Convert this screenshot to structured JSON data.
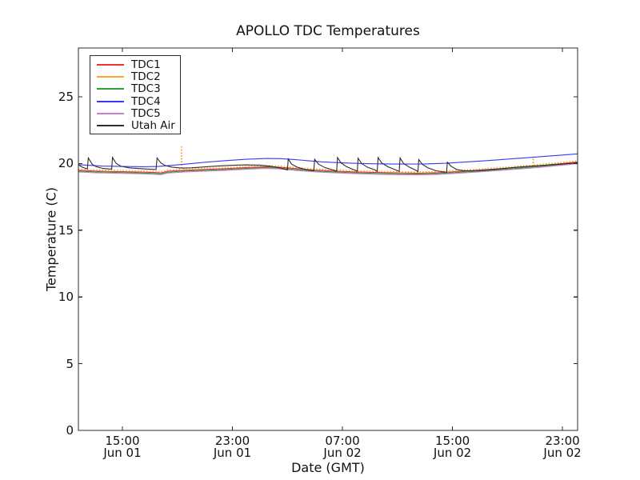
{
  "chart_data": {
    "type": "line",
    "title": "APOLLO TDC Temperatures",
    "xlabel": "Date (GMT)",
    "ylabel": "Temperature (C)",
    "grid": false,
    "legend_position": "upper left",
    "x_unit": "hours since Jun 01 00:00 GMT",
    "xlim": [
      11.8,
      48.1
    ],
    "ylim": [
      0,
      28.66
    ],
    "yticks": [
      0,
      5,
      10,
      15,
      20,
      25
    ],
    "xticks": [
      {
        "t": 15,
        "time": "15:00",
        "date": "Jun 01"
      },
      {
        "t": 23,
        "time": "23:00",
        "date": "Jun 01"
      },
      {
        "t": 31,
        "time": "07:00",
        "date": "Jun 02"
      },
      {
        "t": 39,
        "time": "15:00",
        "date": "Jun 02"
      },
      {
        "t": 47,
        "time": "23:00",
        "date": "Jun 02"
      }
    ],
    "series": [
      {
        "name": "TDC1",
        "color": "#ee3333",
        "style": "solid",
        "points": [
          [
            11.8,
            19.5
          ],
          [
            13,
            19.44
          ],
          [
            14.5,
            19.4
          ],
          [
            16,
            19.37
          ],
          [
            17.3,
            19.33
          ],
          [
            17.8,
            19.3
          ],
          [
            18.3,
            19.42
          ],
          [
            19.5,
            19.5
          ],
          [
            21,
            19.56
          ],
          [
            22.5,
            19.62
          ],
          [
            24,
            19.7
          ],
          [
            25.3,
            19.76
          ],
          [
            26.3,
            19.74
          ],
          [
            27.5,
            19.63
          ],
          [
            29,
            19.51
          ],
          [
            30.5,
            19.43
          ],
          [
            32,
            19.37
          ],
          [
            33.5,
            19.33
          ],
          [
            35,
            19.3
          ],
          [
            36.5,
            19.28
          ],
          [
            38,
            19.32
          ],
          [
            39.5,
            19.41
          ],
          [
            41,
            19.51
          ],
          [
            42.5,
            19.62
          ],
          [
            44,
            19.73
          ],
          [
            45.5,
            19.86
          ],
          [
            47,
            20.01
          ],
          [
            48.1,
            20.12
          ]
        ]
      },
      {
        "name": "TDC2",
        "color": "#ffa728",
        "style": "dotted",
        "points": [
          [
            11.8,
            19.59
          ],
          [
            13,
            19.53
          ],
          [
            14.5,
            19.49
          ],
          [
            16,
            19.46
          ],
          [
            17.3,
            19.42
          ],
          [
            17.8,
            19.39
          ],
          [
            18.3,
            19.51
          ],
          [
            19.2,
            19.58
          ],
          [
            19.28,
            19.6
          ],
          [
            19.3,
            21.35
          ],
          [
            19.34,
            19.6
          ],
          [
            21,
            19.65
          ],
          [
            22.5,
            19.71
          ],
          [
            24,
            19.79
          ],
          [
            25.3,
            19.85
          ],
          [
            26.3,
            19.83
          ],
          [
            27.5,
            19.72
          ],
          [
            29,
            19.6
          ],
          [
            30.5,
            19.52
          ],
          [
            32,
            19.46
          ],
          [
            33.5,
            19.42
          ],
          [
            35,
            19.39
          ],
          [
            36.5,
            19.37
          ],
          [
            38,
            19.41
          ],
          [
            39.5,
            19.5
          ],
          [
            41,
            19.6
          ],
          [
            42.5,
            19.71
          ],
          [
            44,
            19.82
          ],
          [
            44.84,
            19.88
          ],
          [
            44.88,
            20.52
          ],
          [
            44.92,
            19.89
          ],
          [
            45.5,
            19.95
          ],
          [
            47,
            20.1
          ],
          [
            48.1,
            20.21
          ]
        ]
      },
      {
        "name": "TDC3",
        "color": "#2f9e3e",
        "style": "solid",
        "points": [
          [
            11.8,
            19.43
          ],
          [
            13,
            19.37
          ],
          [
            14.5,
            19.33
          ],
          [
            16,
            19.3
          ],
          [
            17.3,
            19.26
          ],
          [
            17.8,
            19.23
          ],
          [
            18.3,
            19.35
          ],
          [
            19.5,
            19.43
          ],
          [
            21,
            19.49
          ],
          [
            22.5,
            19.55
          ],
          [
            24,
            19.63
          ],
          [
            25.3,
            19.69
          ],
          [
            26.3,
            19.67
          ],
          [
            27.5,
            19.56
          ],
          [
            29,
            19.44
          ],
          [
            30.5,
            19.36
          ],
          [
            32,
            19.3
          ],
          [
            33.5,
            19.26
          ],
          [
            35,
            19.23
          ],
          [
            36.5,
            19.21
          ],
          [
            38,
            19.25
          ],
          [
            39.5,
            19.34
          ],
          [
            41,
            19.44
          ],
          [
            42.5,
            19.55
          ],
          [
            44,
            19.66
          ],
          [
            45.5,
            19.79
          ],
          [
            47,
            19.94
          ],
          [
            48.1,
            20.05
          ]
        ]
      },
      {
        "name": "TDC4",
        "color": "#3a3af5",
        "style": "solid",
        "points": [
          [
            11.8,
            19.92
          ],
          [
            12.5,
            19.87
          ],
          [
            13.5,
            19.81
          ],
          [
            15,
            19.78
          ],
          [
            16.5,
            19.76
          ],
          [
            17.6,
            19.78
          ],
          [
            18.5,
            19.86
          ],
          [
            19.5,
            19.95
          ],
          [
            21,
            20.1
          ],
          [
            22.5,
            20.22
          ],
          [
            24,
            20.32
          ],
          [
            25.5,
            20.38
          ],
          [
            26.5,
            20.37
          ],
          [
            27.5,
            20.3
          ],
          [
            28.5,
            20.21
          ],
          [
            29.5,
            20.13
          ],
          [
            31,
            20.05
          ],
          [
            32.5,
            20.0
          ],
          [
            34,
            19.97
          ],
          [
            35.5,
            19.96
          ],
          [
            37,
            19.97
          ],
          [
            38.5,
            20.02
          ],
          [
            40,
            20.12
          ],
          [
            41.5,
            20.22
          ],
          [
            43,
            20.33
          ],
          [
            44.5,
            20.44
          ],
          [
            46,
            20.56
          ],
          [
            47.2,
            20.65
          ],
          [
            48.1,
            20.73
          ]
        ]
      },
      {
        "name": "TDC5",
        "color": "#c77fd0",
        "style": "solid",
        "points": [
          [
            11.8,
            19.37
          ],
          [
            13,
            19.31
          ],
          [
            14.5,
            19.27
          ],
          [
            16,
            19.24
          ],
          [
            17.3,
            19.2
          ],
          [
            17.8,
            19.17
          ],
          [
            18.3,
            19.29
          ],
          [
            19.5,
            19.37
          ],
          [
            21,
            19.43
          ],
          [
            22.5,
            19.49
          ],
          [
            24,
            19.57
          ],
          [
            25.3,
            19.63
          ],
          [
            26.3,
            19.61
          ],
          [
            27.5,
            19.5
          ],
          [
            29,
            19.38
          ],
          [
            30.5,
            19.3
          ],
          [
            32,
            19.24
          ],
          [
            33.5,
            19.2
          ],
          [
            35,
            19.17
          ],
          [
            36.5,
            19.15
          ],
          [
            38,
            19.19
          ],
          [
            39.5,
            19.28
          ],
          [
            41,
            19.38
          ],
          [
            42.5,
            19.49
          ],
          [
            44,
            19.6
          ],
          [
            45.5,
            19.73
          ],
          [
            47,
            19.88
          ],
          [
            48.1,
            19.99
          ]
        ]
      },
      {
        "name": "Utah Air",
        "color": "#2e2e2e",
        "style": "solid",
        "points": [
          [
            11.8,
            19.9
          ],
          [
            12.1,
            19.72
          ],
          [
            12.45,
            19.6
          ],
          [
            12.52,
            20.42
          ],
          [
            12.8,
            19.95
          ],
          [
            13.1,
            19.76
          ],
          [
            13.6,
            19.63
          ],
          [
            14.22,
            19.58
          ],
          [
            14.28,
            20.45
          ],
          [
            14.55,
            20.0
          ],
          [
            14.9,
            19.8
          ],
          [
            15.5,
            19.68
          ],
          [
            16.3,
            19.62
          ],
          [
            17.45,
            19.55
          ],
          [
            17.52,
            20.42
          ],
          [
            17.8,
            20.05
          ],
          [
            18.1,
            19.85
          ],
          [
            18.6,
            19.73
          ],
          [
            19.3,
            19.66
          ],
          [
            20,
            19.68
          ],
          [
            21,
            19.75
          ],
          [
            22,
            19.82
          ],
          [
            23,
            19.87
          ],
          [
            24,
            19.9
          ],
          [
            25,
            19.88
          ],
          [
            25.8,
            19.8
          ],
          [
            26.5,
            19.66
          ],
          [
            27.0,
            19.52
          ],
          [
            27.06,
            20.35
          ],
          [
            27.3,
            19.96
          ],
          [
            27.7,
            19.73
          ],
          [
            28.3,
            19.56
          ],
          [
            28.92,
            19.46
          ],
          [
            28.98,
            20.32
          ],
          [
            29.25,
            19.96
          ],
          [
            29.7,
            19.71
          ],
          [
            30.3,
            19.52
          ],
          [
            30.58,
            19.43
          ],
          [
            30.64,
            20.45
          ],
          [
            30.9,
            20.05
          ],
          [
            31.3,
            19.76
          ],
          [
            31.9,
            19.51
          ],
          [
            32.08,
            19.43
          ],
          [
            32.14,
            20.4
          ],
          [
            32.4,
            20.0
          ],
          [
            32.8,
            19.73
          ],
          [
            33.4,
            19.51
          ],
          [
            33.53,
            19.41
          ],
          [
            33.59,
            20.45
          ],
          [
            33.85,
            20.05
          ],
          [
            34.3,
            19.76
          ],
          [
            34.9,
            19.51
          ],
          [
            35.13,
            19.41
          ],
          [
            35.19,
            20.42
          ],
          [
            35.45,
            20.0
          ],
          [
            35.9,
            19.71
          ],
          [
            36.4,
            19.46
          ],
          [
            36.49,
            19.39
          ],
          [
            36.55,
            20.3
          ],
          [
            36.8,
            19.95
          ],
          [
            37.2,
            19.69
          ],
          [
            37.8,
            19.46
          ],
          [
            38.57,
            19.34
          ],
          [
            38.63,
            20.1
          ],
          [
            38.9,
            19.8
          ],
          [
            39.3,
            19.56
          ],
          [
            39.8,
            19.46
          ],
          [
            40.5,
            19.46
          ],
          [
            41.5,
            19.51
          ],
          [
            42.5,
            19.61
          ],
          [
            43.5,
            19.71
          ],
          [
            44.5,
            19.79
          ],
          [
            45.5,
            19.86
          ],
          [
            46.5,
            19.93
          ],
          [
            47.5,
            20.0
          ],
          [
            48.1,
            20.06
          ]
        ]
      }
    ]
  }
}
